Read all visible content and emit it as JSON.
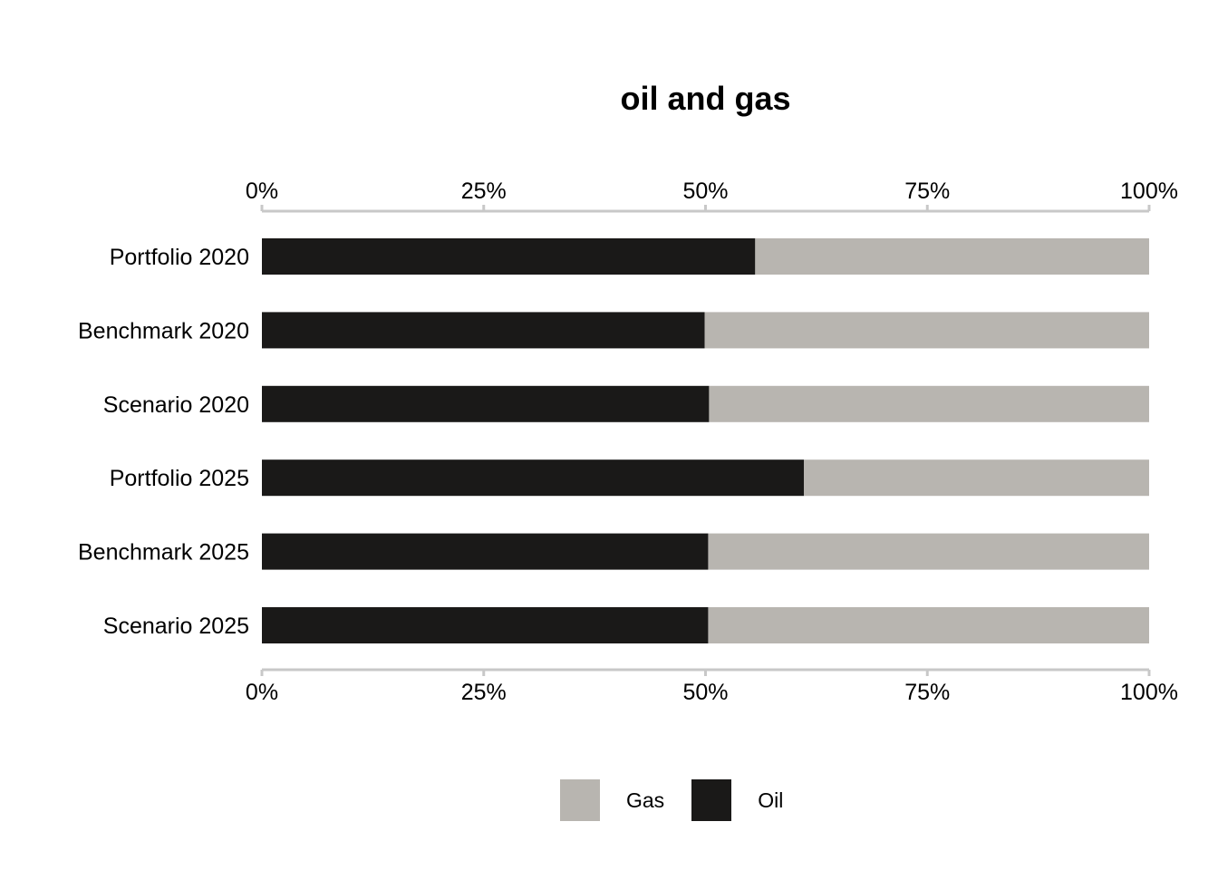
{
  "chart_data": {
    "type": "bar",
    "orientation": "horizontal",
    "stacked": "percent",
    "title": "oil and gas",
    "xlabel": "",
    "ylabel": "",
    "categories": [
      "Portfolio 2020",
      "Benchmark 2020",
      "Scenario 2020",
      "Portfolio 2025",
      "Benchmark 2025",
      "Scenario 2025"
    ],
    "series": [
      {
        "name": "Oil",
        "color": "#1a1918",
        "values": [
          55.6,
          49.9,
          50.4,
          61.1,
          50.3,
          50.3
        ]
      },
      {
        "name": "Gas",
        "color": "#b8b5b0",
        "values": [
          44.4,
          50.1,
          49.6,
          38.9,
          49.7,
          49.7
        ]
      }
    ],
    "xlim": [
      0,
      100
    ],
    "ticks": [
      "0%",
      "25%",
      "50%",
      "75%",
      "100%"
    ],
    "tick_values": [
      0,
      25,
      50,
      75,
      100
    ],
    "axis_positions": [
      "top",
      "bottom"
    ],
    "axis_color": "#c8c8c8",
    "grid": false,
    "legend_position": "bottom",
    "legend_order": [
      "Gas",
      "Oil"
    ]
  }
}
